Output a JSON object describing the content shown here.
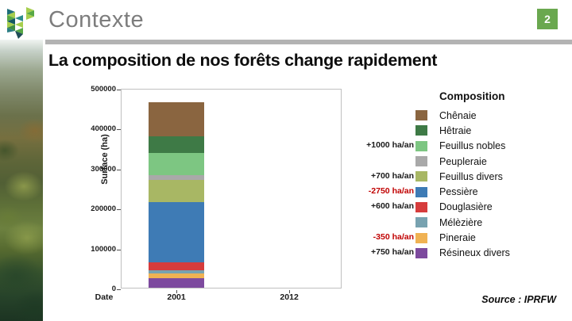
{
  "slide": {
    "header": {
      "title": "Contexte",
      "page_number": "2",
      "badge_color": "#6aa84f"
    },
    "heading": "La composition de nos forêts change rapidement",
    "source": "Source : IPRFW",
    "logo_colors": [
      "#1f6e79",
      "#a6ce4d",
      "#57a845",
      "#145862",
      "#a6ce4d",
      "#3e8d41",
      "#2b7e84",
      "#2b8c8c",
      "#a6ce4d",
      "#57a845",
      "#1f4d57",
      "#a6ce4d",
      "#57a845",
      "#a6ce4d"
    ]
  },
  "chart_data": {
    "type": "bar",
    "stacked": true,
    "xlabel": "Date",
    "ylabel": "Surface (ha)",
    "ylim": [
      0,
      500000
    ],
    "yticks": [
      "0",
      "100000",
      "200000",
      "300000",
      "400000",
      "500000"
    ],
    "categories": [
      "2001",
      "2012"
    ],
    "bars_shown_for": [
      "2001"
    ],
    "grid": false,
    "legend_title": "Composition",
    "legend_position": "right",
    "annotation_colors": {
      "positive": "#1a1a1a",
      "negative": "#c00000"
    },
    "series": [
      {
        "name": "Chênaie",
        "color": "#8a6540",
        "values": [
          85000,
          null
        ],
        "annual_change": null
      },
      {
        "name": "Hêtraie",
        "color": "#3e7a46",
        "values": [
          43000,
          null
        ],
        "annual_change": null
      },
      {
        "name": "Feuillus nobles",
        "color": "#7dc682",
        "values": [
          56000,
          null
        ],
        "annual_change": "+1000 ha/an"
      },
      {
        "name": "Peupleraie",
        "color": "#a9a9a9",
        "values": [
          12000,
          null
        ],
        "annual_change": null
      },
      {
        "name": "Feuillus divers",
        "color": "#a8b764",
        "values": [
          54000,
          null
        ],
        "annual_change": "+700 ha/an"
      },
      {
        "name": "Pessière",
        "color": "#3e7bb5",
        "values": [
          152000,
          null
        ],
        "annual_change": "-2750 ha/an"
      },
      {
        "name": "Douglasière",
        "color": "#d63c3c",
        "values": [
          19000,
          null
        ],
        "annual_change": "+600 ha/an"
      },
      {
        "name": "Mélèzière",
        "color": "#78a2b0",
        "values": [
          9000,
          null
        ],
        "annual_change": null
      },
      {
        "name": "Pineraie",
        "color": "#f0b253",
        "values": [
          12000,
          null
        ],
        "annual_change": "-350 ha/an"
      },
      {
        "name": "Résineux divers",
        "color": "#7d4a9e",
        "values": [
          23000,
          null
        ],
        "annual_change": "+750 ha/an"
      }
    ]
  }
}
